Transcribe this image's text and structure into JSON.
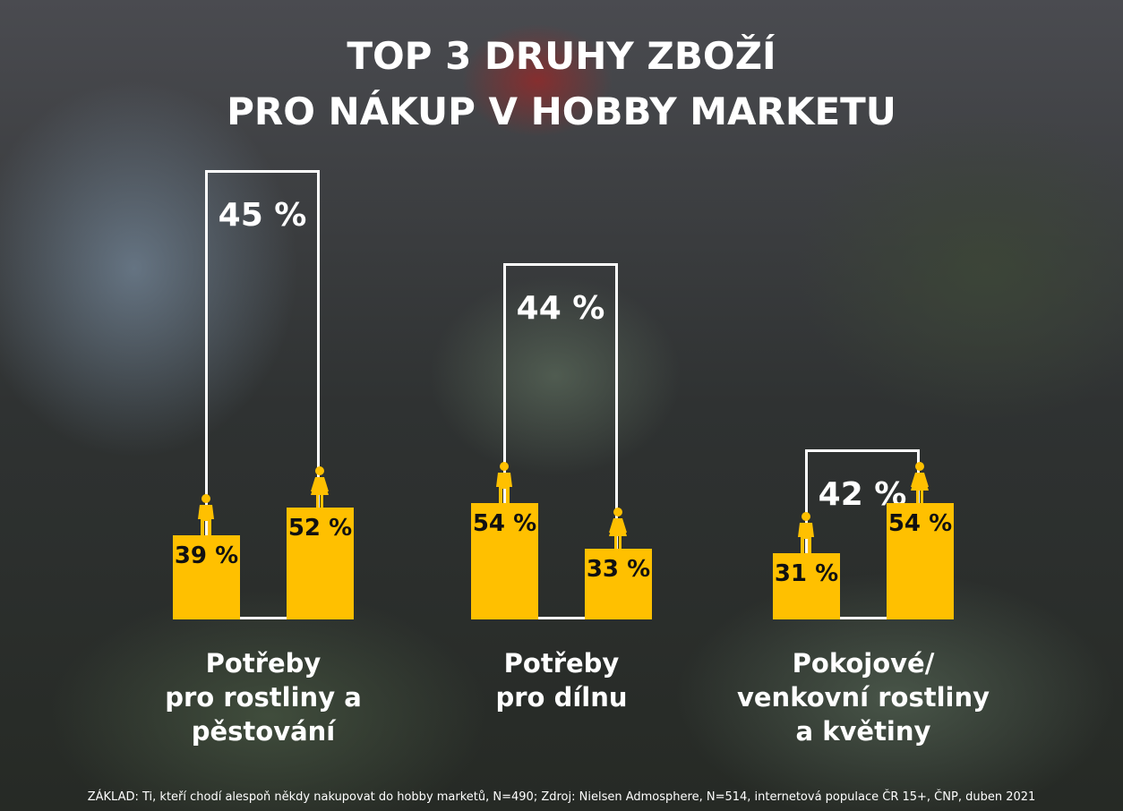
{
  "title_lines": [
    "TOP 3 DRUHY ZBOŽÍ",
    "PRO NÁKUP V HOBBY MARKETU"
  ],
  "chart_data": {
    "type": "bar",
    "title": "TOP 3 DRUHY ZBOŽÍ PRO NÁKUP V HOBBY MARKETU",
    "unit": "%",
    "categories": [
      "Potřeby pro rostliny a pěstování",
      "Potřeby pro dílnu",
      "Pokojové/ venkovní rostliny a květiny"
    ],
    "category_label_lines": [
      [
        "Potřeby",
        "pro rostliny a",
        "pěstování"
      ],
      [
        "Potřeby",
        "pro dílnu"
      ],
      [
        "Pokojové/",
        "venkovní rostliny",
        "a květiny"
      ]
    ],
    "series": [
      {
        "icon": "male-icon",
        "values": [
          39,
          54,
          31
        ]
      },
      {
        "icon": "female-icon",
        "values": [
          52,
          33,
          54
        ]
      }
    ],
    "totals": [
      45,
      44,
      42
    ],
    "value_labels": {
      "totals": [
        "45 %",
        "44 %",
        "42 %"
      ],
      "male": [
        "39 %",
        "54 %",
        "31 %"
      ],
      "female": [
        "52 %",
        "33 %",
        "54 %"
      ]
    },
    "colors": {
      "bar": "#ffc000",
      "outline": "#ffffff"
    }
  },
  "footnote": "ZÁKLAD: Ti, kteří chodí alespoň někdy nakupovat do hobby marketů, N=490; Zdroj: Nielsen Admosphere, N=514, internetová populace ČR 15+, ČNP, duben 2021"
}
